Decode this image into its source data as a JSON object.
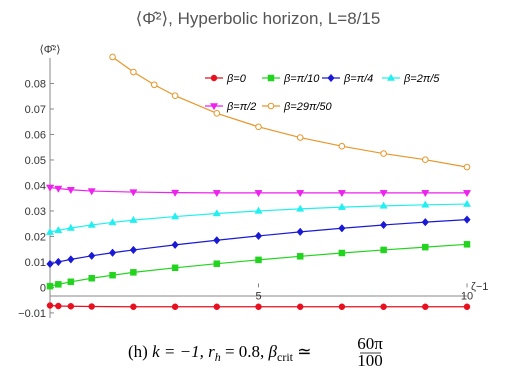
{
  "chart_data": {
    "type": "line",
    "title": "⟨Φ̂²⟩, Hyperbolic horizon, L=8/15",
    "ylabel": "⟨Φ̂²⟩",
    "xlabel": "ζ−1",
    "xlim": [
      0,
      10
    ],
    "ylim": [
      -0.012,
      0.09
    ],
    "x_ticks": [
      {
        "value": 5,
        "label": "5"
      },
      {
        "value": 10,
        "label": "10"
      }
    ],
    "y_ticks": [
      {
        "value": -0.01,
        "label": "−0.01"
      },
      {
        "value": 0,
        "label": "0"
      },
      {
        "value": 0.01,
        "label": "0.01"
      },
      {
        "value": 0.02,
        "label": "0.02"
      },
      {
        "value": 0.03,
        "label": "0.03"
      },
      {
        "value": 0.04,
        "label": "0.04"
      },
      {
        "value": 0.05,
        "label": "0.05"
      },
      {
        "value": 0.06,
        "label": "0.06"
      },
      {
        "value": 0.07,
        "label": "0.07"
      },
      {
        "value": 0.08,
        "label": "0.08"
      }
    ],
    "legend_position": "top-right",
    "series": [
      {
        "name": "β=0",
        "color": "#e8101e",
        "marker": "circle",
        "filled": true,
        "x": [
          0,
          0.2,
          0.5,
          1,
          2,
          3,
          4,
          5,
          6,
          7,
          8,
          9,
          10
        ],
        "y": [
          -0.0071,
          -0.0073,
          -0.0074,
          -0.0075,
          -0.0076,
          -0.0076,
          -0.0076,
          -0.0076,
          -0.0076,
          -0.0076,
          -0.0076,
          -0.0076,
          -0.0076
        ]
      },
      {
        "name": "β=π/10",
        "color": "#22d41e",
        "marker": "square",
        "filled": true,
        "x": [
          0,
          0.2,
          0.5,
          1,
          1.5,
          2,
          3,
          4,
          5,
          6,
          7,
          8,
          9,
          10
        ],
        "y": [
          0.0005,
          0.0012,
          0.0022,
          0.0036,
          0.0048,
          0.0059,
          0.0077,
          0.0093,
          0.0108,
          0.0122,
          0.0135,
          0.0147,
          0.0158,
          0.0169
        ]
      },
      {
        "name": "β=π/4",
        "color": "#1a1ad6",
        "marker": "diamond",
        "filled": true,
        "x": [
          0,
          0.2,
          0.5,
          1,
          1.5,
          2,
          3,
          4,
          5,
          6,
          7,
          8,
          9,
          10
        ],
        "y": [
          0.0092,
          0.01,
          0.011,
          0.0124,
          0.0136,
          0.0147,
          0.0167,
          0.0185,
          0.0202,
          0.0218,
          0.0232,
          0.0245,
          0.0256,
          0.0266
        ]
      },
      {
        "name": "β=2π/5",
        "color": "#22f0f0",
        "marker": "triangle-up",
        "filled": true,
        "x": [
          0,
          0.2,
          0.5,
          1,
          1.5,
          2,
          3,
          4,
          5,
          6,
          7,
          8,
          9,
          10
        ],
        "y": [
          0.0217,
          0.0224,
          0.0233,
          0.0245,
          0.0255,
          0.0264,
          0.0278,
          0.029,
          0.03,
          0.0308,
          0.0315,
          0.032,
          0.0324,
          0.0327
        ]
      },
      {
        "name": "β=π/2",
        "color": "#ee22ee",
        "marker": "triangle-down",
        "filled": true,
        "x": [
          0,
          0.2,
          0.5,
          1,
          2,
          3,
          4,
          5,
          6,
          7,
          8,
          9,
          10
        ],
        "y": [
          0.0392,
          0.0388,
          0.0383,
          0.0378,
          0.0374,
          0.0372,
          0.0371,
          0.0371,
          0.0371,
          0.0371,
          0.0371,
          0.0371,
          0.0371
        ]
      },
      {
        "name": "β=29π/50",
        "color": "#e8962a",
        "marker": "circle",
        "filled": false,
        "x": [
          1.5,
          2,
          2.5,
          3,
          4,
          5,
          6,
          7,
          8,
          9,
          10
        ],
        "y": [
          0.0904,
          0.0845,
          0.0795,
          0.0752,
          0.0683,
          0.063,
          0.0588,
          0.0554,
          0.0525,
          0.0501,
          0.0472
        ]
      }
    ]
  },
  "caption": {
    "prefix": "(h) ",
    "k": "k = −1, ",
    "rh_r": "r",
    "rh_sub": "h",
    "rh_val": " = 0.8, ",
    "beta_sym": "β",
    "beta_sub": "crit",
    "approx": " ≃ ",
    "frac_num": "60π",
    "frac_den": "100"
  }
}
